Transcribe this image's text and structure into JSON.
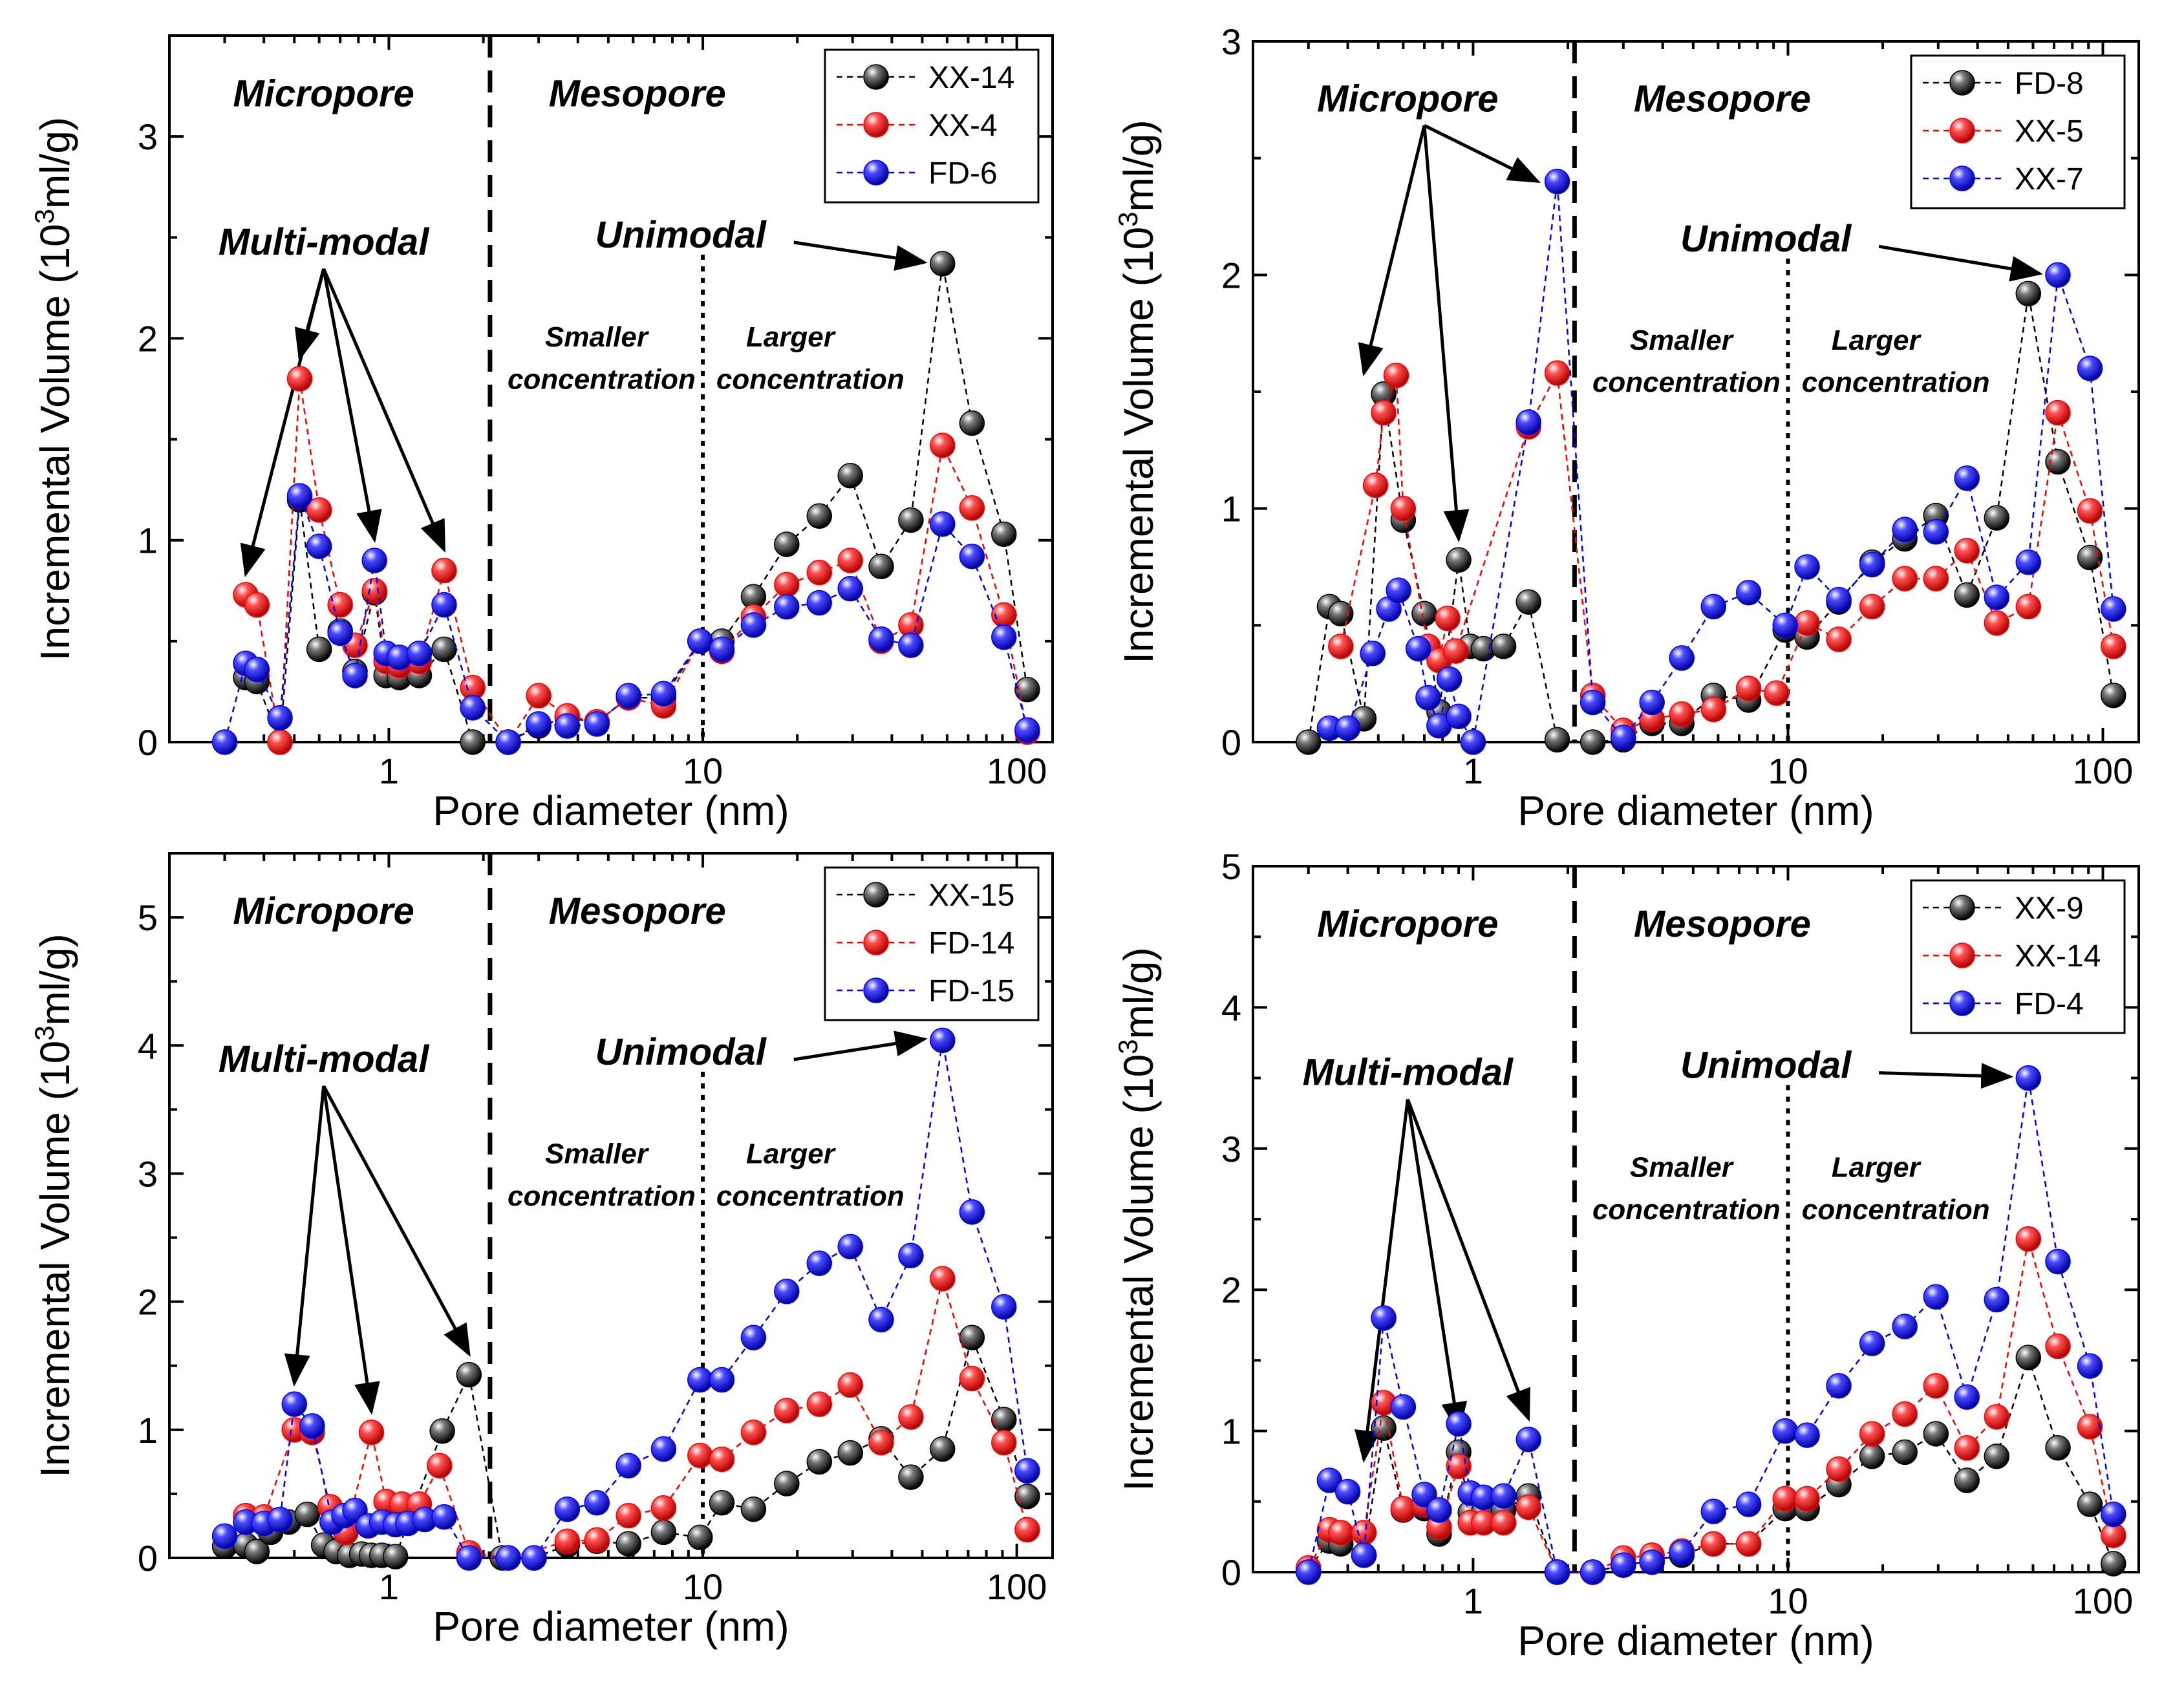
{
  "chart_data": [
    {
      "type": "scatter",
      "xscale": "log",
      "xlim": [
        0.2,
        130
      ],
      "ylim": [
        0,
        3.5
      ],
      "yticks": [
        0,
        1,
        2,
        3
      ],
      "xticks": [
        1,
        10,
        100
      ],
      "xlabel": "Pore diameter (nm)",
      "ylabel": [
        "Incremental Volume (10",
        "3",
        "ml/g)"
      ],
      "region_labels": {
        "micropore": "Micropore",
        "mesopore": "Mesopore",
        "micro_mode": "Multi-modal",
        "meso_mode": "Unimodal",
        "smaller": [
          "Smaller",
          "concentration"
        ],
        "larger": [
          "Larger",
          "concentration"
        ]
      },
      "series": [
        {
          "name": "XX-14",
          "color": "#000000",
          "x": [
            0.35,
            0.38,
            0.45,
            0.52,
            0.6,
            0.7,
            0.78,
            0.9,
            0.98,
            1.08,
            1.25,
            1.5,
            1.85,
            2.4,
            3.0,
            3.7,
            4.6,
            5.8,
            7.5,
            9.8,
            11.5,
            14.5,
            18.5,
            23.5,
            29.5,
            37,
            46,
            58,
            72,
            91,
            108
          ],
          "y": [
            0.32,
            0.3,
            0.0,
            1.2,
            0.46,
            0.55,
            0.35,
            0.74,
            0.33,
            0.32,
            0.33,
            0.46,
            0.0,
            0.0,
            0.08,
            0.12,
            0.1,
            0.22,
            0.22,
            0.5,
            0.5,
            0.72,
            0.98,
            1.12,
            1.32,
            0.87,
            1.1,
            2.37,
            1.58,
            1.03,
            0.26
          ]
        },
        {
          "name": "XX-4",
          "color": "#ff0000",
          "x": [
            0.35,
            0.38,
            0.45,
            0.52,
            0.6,
            0.7,
            0.78,
            0.9,
            0.98,
            1.08,
            1.25,
            1.5,
            1.85,
            2.4,
            3.0,
            3.7,
            4.6,
            5.8,
            7.5,
            9.8,
            11.5,
            14.5,
            18.5,
            23.5,
            29.5,
            37,
            46,
            58,
            72,
            91,
            108
          ],
          "y": [
            0.73,
            0.68,
            0.0,
            1.8,
            1.15,
            0.68,
            0.48,
            0.75,
            0.4,
            0.38,
            0.4,
            0.85,
            0.27,
            0.0,
            0.23,
            0.13,
            0.1,
            0.22,
            0.18,
            0.5,
            0.45,
            0.62,
            0.78,
            0.84,
            0.9,
            0.5,
            0.58,
            1.47,
            1.16,
            0.63,
            0.05
          ]
        },
        {
          "name": "FD-6",
          "color": "#0000ff",
          "x": [
            0.3,
            0.35,
            0.38,
            0.45,
            0.52,
            0.6,
            0.7,
            0.78,
            0.9,
            0.98,
            1.08,
            1.25,
            1.5,
            1.85,
            2.4,
            3.0,
            3.7,
            4.6,
            5.8,
            7.5,
            9.8,
            11.5,
            14.5,
            18.5,
            23.5,
            29.5,
            37,
            46,
            58,
            72,
            91,
            108
          ],
          "y": [
            0.0,
            0.39,
            0.36,
            0.12,
            1.22,
            0.97,
            0.54,
            0.33,
            0.9,
            0.44,
            0.42,
            0.44,
            0.68,
            0.17,
            0.0,
            0.09,
            0.08,
            0.09,
            0.23,
            0.24,
            0.5,
            0.46,
            0.58,
            0.67,
            0.69,
            0.76,
            0.51,
            0.48,
            1.08,
            0.92,
            0.52,
            0.06
          ]
        }
      ],
      "legend": {
        "placement": "top-right"
      }
    },
    {
      "type": "scatter",
      "xscale": "log",
      "xlim": [
        0.2,
        130
      ],
      "ylim": [
        0,
        3
      ],
      "yticks": [
        0,
        1,
        2,
        3
      ],
      "xticks": [
        1,
        10,
        100
      ],
      "xlabel": "Pore diameter (nm)",
      "ylabel": [
        "Incremental Volume (10",
        "3",
        "ml/g)"
      ],
      "region_labels": {
        "micropore": "Micropore",
        "mesopore": "Mesopore",
        "meso_mode": "Unimodal",
        "smaller": [
          "Smaller",
          "concentration"
        ],
        "larger": [
          "Larger",
          "concentration"
        ]
      },
      "series": [
        {
          "name": "FD-8",
          "color": "#000000",
          "x": [
            0.3,
            0.35,
            0.38,
            0.45,
            0.52,
            0.6,
            0.7,
            0.78,
            0.9,
            0.98,
            1.08,
            1.25,
            1.5,
            1.85,
            2.4,
            3.0,
            3.7,
            4.6,
            5.8,
            7.5,
            9.8,
            11.5,
            14.5,
            18.5,
            23.5,
            29.5,
            37,
            46,
            58,
            72,
            91,
            108
          ],
          "y": [
            0.0,
            0.58,
            0.55,
            0.1,
            1.49,
            0.95,
            0.55,
            0.13,
            0.78,
            0.41,
            0.4,
            0.41,
            0.6,
            0.01,
            0.0,
            0.01,
            0.08,
            0.08,
            0.2,
            0.18,
            0.48,
            0.45,
            0.6,
            0.77,
            0.87,
            0.97,
            0.63,
            0.96,
            1.92,
            1.2,
            0.79,
            0.2
          ]
        },
        {
          "name": "XX-5",
          "color": "#ff0000",
          "x": [
            0.38,
            0.49,
            0.52,
            0.57,
            0.6,
            0.72,
            0.78,
            0.83,
            0.88,
            1.5,
            1.85,
            2.4,
            3.0,
            3.7,
            4.6,
            5.8,
            7.5,
            9.2,
            11.5,
            14.5,
            18.5,
            23.5,
            29.5,
            37,
            46,
            58,
            72,
            91,
            108
          ],
          "y": [
            0.41,
            1.1,
            1.41,
            1.57,
            1.0,
            0.41,
            0.35,
            0.53,
            0.39,
            1.35,
            1.58,
            0.2,
            0.05,
            0.1,
            0.12,
            0.14,
            0.23,
            0.21,
            0.51,
            0.44,
            0.58,
            0.7,
            0.7,
            0.82,
            0.51,
            0.58,
            1.41,
            0.99,
            0.41
          ]
        },
        {
          "name": "XX-7",
          "color": "#0000ff",
          "x": [
            0.35,
            0.4,
            0.48,
            0.54,
            0.58,
            0.67,
            0.72,
            0.78,
            0.84,
            0.9,
            1.0,
            1.5,
            1.85,
            2.4,
            3.0,
            3.7,
            4.6,
            5.8,
            7.5,
            9.8,
            11.5,
            14.5,
            18.5,
            23.5,
            29.5,
            37,
            46,
            58,
            72,
            91,
            108
          ],
          "y": [
            0.06,
            0.06,
            0.38,
            0.57,
            0.65,
            0.4,
            0.19,
            0.07,
            0.27,
            0.11,
            0.0,
            1.37,
            2.4,
            0.17,
            0.02,
            0.17,
            0.36,
            0.58,
            0.64,
            0.5,
            0.75,
            0.61,
            0.76,
            0.91,
            0.9,
            1.13,
            0.62,
            0.77,
            2.0,
            1.6,
            0.57
          ]
        }
      ],
      "legend": {
        "placement": "top-right"
      }
    },
    {
      "type": "scatter",
      "xscale": "log",
      "xlim": [
        0.2,
        130
      ],
      "ylim": [
        0,
        5.5
      ],
      "yticks": [
        0,
        1,
        2,
        3,
        4,
        5
      ],
      "xticks": [
        1,
        10,
        100
      ],
      "xlabel": "Pore diameter (nm)",
      "ylabel": [
        "Incremental Volume (10",
        "3",
        "ml/g)"
      ],
      "region_labels": {
        "micropore": "Micropore",
        "mesopore": "Mesopore",
        "micro_mode": "Multi-modal",
        "meso_mode": "Unimodal",
        "smaller": [
          "Smaller",
          "concentration"
        ],
        "larger": [
          "Larger",
          "concentration"
        ]
      },
      "series": [
        {
          "name": "XX-15",
          "color": "#000000",
          "x": [
            0.3,
            0.35,
            0.38,
            0.42,
            0.48,
            0.55,
            0.62,
            0.68,
            0.75,
            0.82,
            0.88,
            0.95,
            1.05,
            1.48,
            1.8,
            2.3,
            2.9,
            3.7,
            4.6,
            5.8,
            7.5,
            9.8,
            11.5,
            14.5,
            18.5,
            23.5,
            29.5,
            37,
            46,
            58,
            72,
            91,
            108
          ],
          "y": [
            0.09,
            0.1,
            0.05,
            0.2,
            0.28,
            0.34,
            0.1,
            0.05,
            0.02,
            0.03,
            0.02,
            0.02,
            0.01,
            0.99,
            1.43,
            0.0,
            0.0,
            0.1,
            0.13,
            0.11,
            0.2,
            0.16,
            0.43,
            0.38,
            0.58,
            0.75,
            0.82,
            0.93,
            0.63,
            0.85,
            1.72,
            1.08,
            0.48
          ]
        },
        {
          "name": "FD-14",
          "color": "#ff0000",
          "x": [
            0.35,
            0.4,
            0.5,
            0.57,
            0.65,
            0.73,
            0.88,
            0.98,
            1.1,
            1.25,
            1.45,
            1.8,
            2.4,
            3.7,
            4.6,
            5.8,
            7.5,
            9.8,
            11.5,
            14.5,
            18.5,
            23.5,
            29.5,
            37,
            46,
            58,
            72,
            91,
            108
          ],
          "y": [
            0.33,
            0.32,
            1.0,
            0.98,
            0.4,
            0.2,
            0.98,
            0.44,
            0.42,
            0.42,
            0.72,
            0.04,
            0.0,
            0.13,
            0.14,
            0.33,
            0.39,
            0.8,
            0.77,
            0.98,
            1.15,
            1.2,
            1.35,
            0.9,
            1.1,
            2.18,
            1.4,
            0.9,
            0.22
          ]
        },
        {
          "name": "FD-15",
          "color": "#0000ff",
          "x": [
            0.3,
            0.35,
            0.4,
            0.45,
            0.5,
            0.57,
            0.66,
            0.72,
            0.78,
            0.86,
            0.95,
            1.05,
            1.15,
            1.3,
            1.5,
            1.8,
            2.4,
            2.9,
            3.7,
            4.6,
            5.8,
            7.5,
            9.8,
            11.5,
            14.5,
            18.5,
            23.5,
            29.5,
            37,
            46,
            58,
            72,
            91,
            108
          ],
          "y": [
            0.17,
            0.28,
            0.27,
            0.3,
            1.2,
            1.03,
            0.28,
            0.33,
            0.37,
            0.25,
            0.28,
            0.26,
            0.27,
            0.3,
            0.32,
            0.0,
            0.0,
            0.0,
            0.38,
            0.43,
            0.72,
            0.85,
            1.39,
            1.39,
            1.72,
            2.08,
            2.3,
            2.43,
            1.86,
            2.36,
            4.04,
            2.7,
            1.96,
            0.68
          ]
        }
      ],
      "legend": {
        "placement": "top-right"
      }
    },
    {
      "type": "scatter",
      "xscale": "log",
      "xlim": [
        0.2,
        130
      ],
      "ylim": [
        0,
        5
      ],
      "yticks": [
        0,
        1,
        2,
        3,
        4,
        5
      ],
      "xticks": [
        1,
        10,
        100
      ],
      "xlabel": "Pore diameter (nm)",
      "ylabel": [
        "Incremental Volume (10",
        "3",
        "ml/g)"
      ],
      "region_labels": {
        "micropore": "Micropore",
        "mesopore": "Mesopore",
        "micro_mode": "Multi-modal",
        "meso_mode": "Unimodal",
        "smaller": [
          "Smaller",
          "concentration"
        ],
        "larger": [
          "Larger",
          "concentration"
        ]
      },
      "series": [
        {
          "name": "XX-9",
          "color": "#000000",
          "x": [
            0.3,
            0.35,
            0.38,
            0.45,
            0.52,
            0.6,
            0.7,
            0.78,
            0.9,
            0.98,
            1.08,
            1.25,
            1.5,
            1.85,
            2.4,
            3.0,
            3.7,
            4.6,
            5.8,
            7.5,
            9.8,
            11.5,
            14.5,
            18.5,
            23.5,
            29.5,
            37,
            46,
            58,
            72,
            91,
            108
          ],
          "y": [
            0.02,
            0.22,
            0.2,
            0.12,
            1.02,
            0.44,
            0.45,
            0.27,
            0.85,
            0.42,
            0.42,
            0.44,
            0.54,
            0.0,
            0.0,
            0.05,
            0.08,
            0.12,
            0.2,
            0.2,
            0.45,
            0.45,
            0.62,
            0.82,
            0.85,
            0.98,
            0.65,
            0.82,
            1.52,
            0.88,
            0.48,
            0.06
          ]
        },
        {
          "name": "XX-14",
          "color": "#ff0000",
          "x": [
            0.3,
            0.35,
            0.38,
            0.45,
            0.52,
            0.6,
            0.7,
            0.78,
            0.9,
            0.98,
            1.08,
            1.25,
            1.5,
            1.85,
            2.4,
            3.0,
            3.7,
            4.6,
            5.8,
            7.5,
            9.8,
            11.5,
            14.5,
            18.5,
            23.5,
            29.5,
            37,
            46,
            58,
            72,
            91,
            108
          ],
          "y": [
            0.03,
            0.3,
            0.28,
            0.28,
            1.2,
            0.45,
            0.48,
            0.32,
            0.75,
            0.35,
            0.35,
            0.35,
            0.46,
            0.0,
            0.0,
            0.1,
            0.12,
            0.15,
            0.2,
            0.2,
            0.52,
            0.52,
            0.73,
            0.98,
            1.12,
            1.32,
            0.88,
            1.1,
            2.36,
            1.6,
            1.03,
            0.26
          ]
        },
        {
          "name": "FD-4",
          "color": "#0000ff",
          "x": [
            0.3,
            0.35,
            0.4,
            0.45,
            0.52,
            0.6,
            0.7,
            0.78,
            0.9,
            0.98,
            1.08,
            1.25,
            1.5,
            1.85,
            2.4,
            3.0,
            3.7,
            4.6,
            5.8,
            7.5,
            9.8,
            11.5,
            14.5,
            18.5,
            23.5,
            29.5,
            37,
            46,
            58,
            72,
            91,
            108
          ],
          "y": [
            0.0,
            0.65,
            0.57,
            0.12,
            1.8,
            1.17,
            0.55,
            0.44,
            1.05,
            0.56,
            0.53,
            0.54,
            0.94,
            0.0,
            0.0,
            0.05,
            0.07,
            0.14,
            0.43,
            0.48,
            1.0,
            0.97,
            1.32,
            1.62,
            1.74,
            1.95,
            1.24,
            1.93,
            3.5,
            2.2,
            1.46,
            0.41
          ]
        }
      ],
      "legend": {
        "placement": "top-right"
      }
    }
  ]
}
